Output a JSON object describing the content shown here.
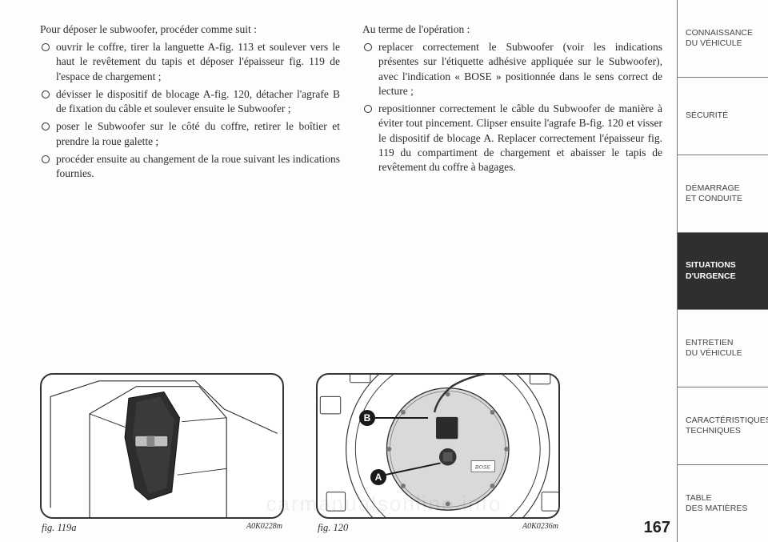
{
  "left": {
    "intro": "Pour déposer le subwoofer, procéder comme suit :",
    "items": [
      "ouvrir le coffre, tirer la languette A-fig. 113 et soulever vers le haut le revêtement du tapis et déposer l'épaisseur fig. 119 de l'espace de chargement ;",
      "dévisser le dispositif de blocage A-fig. 120, détacher l'agrafe B de fixation du câble et soulever ensuite le Subwoofer ;",
      "poser le Subwoofer sur le côté du coffre, retirer le boîtier et prendre la roue galette ;",
      "procéder ensuite au changement de la roue suivant les indications fournies."
    ]
  },
  "right": {
    "intro": "Au terme de l'opération :",
    "items": [
      "replacer correctement le Subwoofer (voir les indications présentes sur l'étiquette adhésive appliquée sur le Subwoofer), avec l'indication « BOSE » positionnée dans le sens correct de lecture ;",
      "repositionner correctement le câble du Subwoofer de manière à éviter tout pincement. Clipser ensuite l'agrafe B-fig. 120 et visser le dispositif de blocage A. Replacer correctement l'épaisseur fig. 119 du compartiment de chargement et abaisser le tapis de revêtement du coffre à bagages."
    ]
  },
  "fig119a": {
    "label": "fig. 119a",
    "code": "A0K0228m"
  },
  "fig120": {
    "label": "fig. 120",
    "code": "A0K0236m",
    "markerA": "A",
    "markerB": "B"
  },
  "tabs": [
    "CONNAISSANCE\nDU VÉHICULE",
    "SÉCURITÉ",
    "DÉMARRAGE\nET CONDUITE",
    "SITUATIONS\nD'URGENCE",
    "ENTRETIEN\nDU VÉHICULE",
    "CARACTÉRISTIQUES\nTECHNIQUES",
    "TABLE\nDES MATIÈRES"
  ],
  "activeTab": 3,
  "pageNumber": "167",
  "watermark": "carmanualsonline.info"
}
